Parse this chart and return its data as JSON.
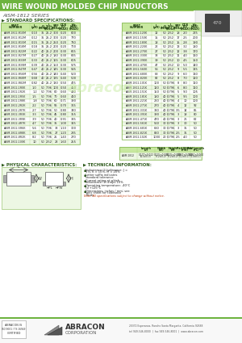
{
  "title": "WIRE WOUND MOLDED CHIP INDUCTORS",
  "subtitle": "AISM-1812 SERIES",
  "left_table": [
    [
      "AISM-1812-R10M",
      "0.10",
      "35",
      "25.2",
      "300",
      "0.20",
      "800"
    ],
    [
      "AISM-1812-R12M",
      "0.12",
      "35",
      "25.2",
      "300",
      "0.20",
      "770"
    ],
    [
      "AISM-1812-R15M",
      "0.15",
      "35",
      "25.2",
      "250",
      "0.20",
      "730"
    ],
    [
      "AISM-1812-R18M",
      "0.18",
      "35",
      "25.2",
      "200",
      "0.20",
      "700"
    ],
    [
      "AISM-1812-R22M",
      "0.22",
      "40",
      "25.2",
      "200",
      "0.30",
      "665"
    ],
    [
      "AISM-1812-R27M",
      "0.27",
      "40",
      "25.2",
      "180",
      "0.30",
      "635"
    ],
    [
      "AISM-1812-R33M",
      "0.33",
      "40",
      "25.2",
      "165",
      "0.30",
      "605"
    ],
    [
      "AISM-1812-R39M",
      "0.39",
      "40",
      "25.2",
      "150",
      "0.30",
      "575"
    ],
    [
      "AISM-1812-R47M",
      "0.47",
      "40",
      "25.2",
      "145",
      "0.30",
      "545"
    ],
    [
      "AISM-1812-R56M",
      "0.56",
      "40",
      "25.2",
      "140",
      "0.40",
      "520"
    ],
    [
      "AISM-1812-R68M",
      "0.68",
      "40",
      "25.2",
      "135",
      "0.40",
      "500"
    ],
    [
      "AISM-1812-R82M",
      "0.82",
      "40",
      "25.2",
      "130",
      "0.50",
      "475"
    ],
    [
      "AISM-1812-1R0K",
      "1.0",
      "50",
      "7.96",
      "100",
      "0.50",
      "450"
    ],
    [
      "AISM-1812-1R2K",
      "1.2",
      "50",
      "7.96",
      "80",
      "0.60",
      "430"
    ],
    [
      "AISM-1812-1R5K",
      "1.5",
      "50",
      "7.96",
      "70",
      "0.60",
      "410"
    ],
    [
      "AISM-1812-1R8K",
      "1.8",
      "50",
      "7.96",
      "60",
      "0.71",
      "390"
    ],
    [
      "AISM-1812-2R2K",
      "2.2",
      "50",
      "7.96",
      "55",
      "0.70",
      "365"
    ],
    [
      "AISM-1812-2R7K",
      "2.7",
      "50",
      "7.96",
      "50",
      "0.80",
      "340"
    ],
    [
      "AISM-1812-3R3K",
      "3.3",
      "50",
      "7.96",
      "45",
      "0.80",
      "355"
    ],
    [
      "AISM-1812-3R9K",
      "3.9",
      "50",
      "7.96",
      "40",
      "0.91",
      "335"
    ],
    [
      "AISM-1812-4R7K",
      "4.7",
      "50",
      "7.96",
      "35",
      "1.00",
      "315"
    ],
    [
      "AISM-1812-5R6K",
      "5.6",
      "50",
      "7.96",
      "33",
      "1.10",
      "300"
    ],
    [
      "AISM-1812-6R8K",
      "6.8",
      "50",
      "7.96",
      "27",
      "1.20",
      "285"
    ],
    [
      "AISM-1812-8R2K",
      "8.2",
      "50",
      "7.96",
      "25",
      "1.40",
      "270"
    ],
    [
      "AISM-1812-100K",
      "10",
      "50",
      "2.52",
      "23",
      "1.60",
      "255"
    ]
  ],
  "right_table": [
    [
      "AISM-1812-120K",
      "12",
      "50",
      "2.52",
      "18",
      "2.0",
      "225"
    ],
    [
      "AISM-1812-150K",
      "15",
      "50",
      "2.52",
      "17",
      "2.5",
      "200"
    ],
    [
      "AISM-1812-180K",
      "18",
      "50",
      "2.52",
      "15",
      "2.8",
      "190"
    ],
    [
      "AISM-1812-220K",
      "22",
      "50",
      "2.52",
      "13",
      "3.2",
      "180"
    ],
    [
      "AISM-1812-270K",
      "27",
      "50",
      "2.52",
      "12",
      "3.8",
      "170"
    ],
    [
      "AISM-1812-330K",
      "33",
      "50",
      "2.52",
      "11",
      "4.0",
      "160"
    ],
    [
      "AISM-1812-390K",
      "39",
      "50",
      "2.52",
      "10",
      "4.5",
      "150"
    ],
    [
      "AISM-1812-470K",
      "47",
      "50",
      "2.52",
      "10",
      "5.0",
      "140"
    ],
    [
      "AISM-1812-560K",
      "56",
      "50",
      "2.52",
      "9",
      "5.5",
      "135"
    ],
    [
      "AISM-1812-680K",
      "68",
      "50",
      "2.52",
      "9",
      "6.0",
      "130"
    ],
    [
      "AISM-1812-820K",
      "82",
      "50",
      "2.52",
      "8",
      "7.0",
      "120"
    ],
    [
      "AISM-1812-101K",
      "100",
      "50",
      "0.796",
      "8",
      "8.0",
      "110"
    ],
    [
      "AISM-1812-121K",
      "120",
      "50",
      "0.796",
      "6",
      "8.0",
      "110"
    ],
    [
      "AISM-1812-151K",
      "150",
      "50",
      "0.796",
      "5",
      "9.0",
      "105"
    ],
    [
      "AISM-1812-181K",
      "180",
      "40",
      "0.796",
      "5",
      "9.5",
      "100"
    ],
    [
      "AISM-1812-221K",
      "220",
      "40",
      "0.796",
      "4",
      "10",
      "100"
    ],
    [
      "AISM-1812-271K",
      "270",
      "40",
      "0.796",
      "4",
      "12",
      "92"
    ],
    [
      "AISM-1812-331K",
      "330",
      "40",
      "0.796",
      "3.5",
      "14",
      "85"
    ],
    [
      "AISM-1812-391K",
      "390",
      "40",
      "0.796",
      "3",
      "18",
      "80"
    ],
    [
      "AISM-1812-471K",
      "470",
      "40",
      "0.796",
      "3",
      "26",
      "62"
    ],
    [
      "AISM-1812-561K",
      "560",
      "30",
      "0.796",
      "3",
      "30",
      "50"
    ],
    [
      "AISM-1812-681K",
      "680",
      "30",
      "0.796",
      "3",
      "35",
      "50"
    ],
    [
      "AISM-1812-821K",
      "820",
      "30",
      "0.796",
      "2.5",
      "35",
      "50"
    ],
    [
      "AISM-1812-102K",
      "1000",
      "20",
      "0.796",
      "2.5",
      "4.0",
      "50"
    ]
  ],
  "col_headers": [
    "PART\nNUMBER",
    "L\n(μH)",
    "Q\n(MIN)",
    "L\nTest\n(MHz)",
    "SRF\n(MHz)",
    "DCR\n(Ω)\n(MAX)",
    "Idc\n(mA)\n(MAX)"
  ],
  "dim_table_headers": [
    "",
    "Length\n(L)",
    "Width\n(W)",
    "Height\n(H)",
    "Pad Width\n(PW)",
    "Pad Length\n(PL)"
  ],
  "dim_table_data": [
    [
      "AISM-1812",
      "0.177±0.012\n(4.5±0.3)",
      "0.125±0.008\n(3.2±0.2)",
      "0.125±0.008\n(3.2±0.2)",
      "0.047±0.004\n(1.2±0.1)",
      "0.040±0.004\n(1.0±0.1)"
    ]
  ],
  "physical_text": "PHYSICAL CHARACTERISTICS:",
  "tech_title": "TECHNICAL INFORMATION:",
  "tech_bullets": [
    "Inductance (L) tolerance: J = 5%, K = 10%, M = 20%",
    "Letter suffix indicates standard tolerance",
    "Current rating at which inductance (L) drops 10%",
    "Operating temperature: -40°C to +125°C",
    "Dimensions: inches / mm; see spec sheet for tolerance limits",
    "Note: All specifications subject to change without notice."
  ],
  "company": "ABRACON",
  "company_sub": "CORPORATION",
  "address": "20372 Esperanza, Rancho Santa Margarita, California 92688",
  "contact": "tel 949-546-8000  |  fax 949-546-8001  |  www.abracon.com",
  "green_stripe": "#6db33f",
  "light_green_bg": "#edf7e4"
}
